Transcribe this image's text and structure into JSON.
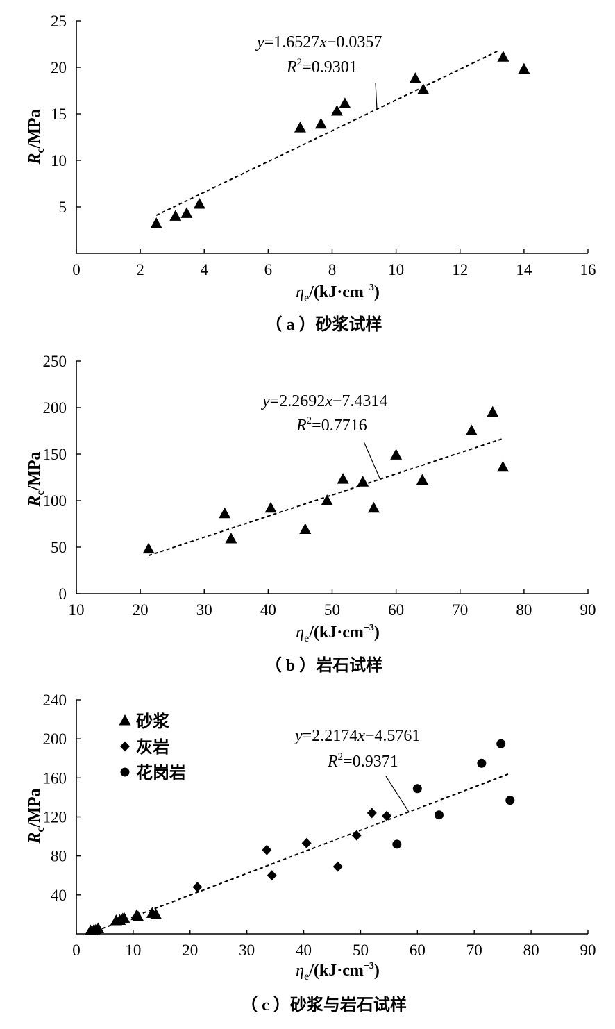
{
  "chart_data": [
    {
      "type": "scatter",
      "caption": "（ a ）砂浆试样",
      "xlabel": {
        "sym": "η",
        "sub": "e",
        "unit": "/(kJ·cm",
        "sup": "−3",
        "close": ")"
      },
      "ylabel": {
        "sym": "R",
        "sub": "c",
        "unit": "/MPa"
      },
      "xlim": [
        0,
        16
      ],
      "ylim": [
        0,
        25
      ],
      "xticks": [
        "0",
        "2",
        "4",
        "6",
        "8",
        "10",
        "12",
        "14",
        "16"
      ],
      "yticks": [
        "5",
        "10",
        "15",
        "20",
        "25"
      ],
      "series": [
        {
          "marker": "triangle",
          "points": [
            [
              2.5,
              3.2
            ],
            [
              3.1,
              4.0
            ],
            [
              3.45,
              4.3
            ],
            [
              3.85,
              5.3
            ],
            [
              7.0,
              13.5
            ],
            [
              7.65,
              13.9
            ],
            [
              8.15,
              15.3
            ],
            [
              8.4,
              16.1
            ],
            [
              10.6,
              18.8
            ],
            [
              10.85,
              17.6
            ],
            [
              13.35,
              21.1
            ],
            [
              14.0,
              19.8
            ]
          ]
        }
      ],
      "fit": {
        "slope": 1.6527,
        "intercept": -0.0357,
        "x_range": [
          2.5,
          13.2
        ],
        "eq_y": "y",
        "eq_rest": "=1.6527",
        "eq_x": "x",
        "eq_tail": "−0.0357",
        "r2_R": "R",
        "r2_sup": "2",
        "r2_val": "=0.9301",
        "pointer_to": [
          9.4,
          15.5
        ]
      }
    },
    {
      "type": "scatter",
      "caption": "（ b ）岩石试样",
      "xlabel": {
        "sym": "η",
        "sub": "e",
        "unit": "/(kJ·cm",
        "sup": "−3",
        "close": ")"
      },
      "ylabel": {
        "sym": "R",
        "sub": "c",
        "unit": "/MPa"
      },
      "xlim": [
        10,
        90
      ],
      "ylim": [
        0,
        250
      ],
      "xticks": [
        "10",
        "20",
        "30",
        "40",
        "50",
        "60",
        "70",
        "80",
        "90"
      ],
      "yticks": [
        "0",
        "50",
        "100",
        "150",
        "200",
        "250"
      ],
      "series": [
        {
          "marker": "triangle",
          "points": [
            [
              21.3,
              48
            ],
            [
              33.2,
              86
            ],
            [
              34.2,
              59
            ],
            [
              40.4,
              92
            ],
            [
              45.8,
              69
            ],
            [
              49.2,
              100
            ],
            [
              51.7,
              123
            ],
            [
              54.8,
              120
            ],
            [
              56.5,
              92
            ],
            [
              60.0,
              149
            ],
            [
              64.1,
              122
            ],
            [
              71.8,
              175
            ],
            [
              75.1,
              195
            ],
            [
              76.7,
              136
            ]
          ]
        }
      ],
      "fit": {
        "slope": 2.2692,
        "intercept": -7.4314,
        "x_range": [
          21.3,
          76.5
        ],
        "eq_y": "y",
        "eq_rest": "=2.2692",
        "eq_x": "x",
        "eq_tail": "−7.4314",
        "r2_R": "R",
        "r2_sup": "2",
        "r2_val": "=0.7716",
        "pointer_to": [
          57.5,
          123
        ]
      }
    },
    {
      "type": "scatter",
      "caption": "（ c ）砂浆与岩石试样",
      "xlabel": {
        "sym": "η",
        "sub": "e",
        "unit": "/(kJ·cm",
        "sup": "−3",
        "close": ")"
      },
      "ylabel": {
        "sym": "R",
        "sub": "c",
        "unit": "/MPa"
      },
      "xlim": [
        0,
        90
      ],
      "ylim": [
        0,
        240
      ],
      "xticks": [
        "0",
        "10",
        "20",
        "30",
        "40",
        "50",
        "60",
        "70",
        "80",
        "90"
      ],
      "yticks": [
        "40",
        "80",
        "120",
        "160",
        "200",
        "240"
      ],
      "series": [
        {
          "name": "砂浆",
          "marker": "triangle",
          "points": [
            [
              2.5,
              3.2
            ],
            [
              3.1,
              4.0
            ],
            [
              3.45,
              4.3
            ],
            [
              3.85,
              5.3
            ],
            [
              7.0,
              13.5
            ],
            [
              7.65,
              13.9
            ],
            [
              8.15,
              15.3
            ],
            [
              8.4,
              16.1
            ],
            [
              10.6,
              18.8
            ],
            [
              10.85,
              17.6
            ],
            [
              13.35,
              21.1
            ],
            [
              14.0,
              19.8
            ]
          ]
        },
        {
          "name": "灰岩",
          "marker": "diamond",
          "points": [
            [
              21.3,
              48
            ],
            [
              33.5,
              86
            ],
            [
              34.4,
              60
            ],
            [
              40.5,
              93
            ],
            [
              46.0,
              69
            ],
            [
              49.3,
              101
            ],
            [
              52.0,
              124
            ],
            [
              54.6,
              121
            ]
          ]
        },
        {
          "name": "花岗岩",
          "marker": "circle",
          "points": [
            [
              56.4,
              92
            ],
            [
              60.0,
              149
            ],
            [
              63.8,
              122
            ],
            [
              71.3,
              175
            ],
            [
              74.7,
              195
            ],
            [
              76.3,
              137
            ]
          ]
        }
      ],
      "fit": {
        "slope": 2.2174,
        "intercept": -4.5761,
        "x_range": [
          4.5,
          76.2
        ],
        "eq_y": "y",
        "eq_rest": "=2.2174",
        "eq_x": "x",
        "eq_tail": "−4.5761",
        "r2_R": "R",
        "r2_sup": "2",
        "r2_val": "=0.9371",
        "pointer_to": [
          58.5,
          125
        ]
      }
    }
  ]
}
